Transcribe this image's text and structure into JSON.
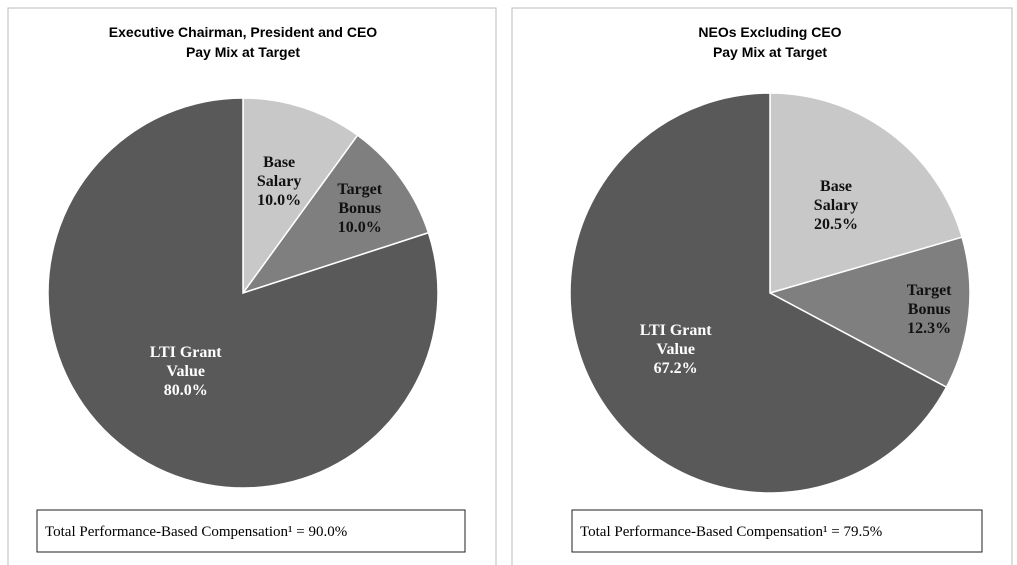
{
  "chart_data": [
    {
      "type": "pie",
      "title": "Executive Chairman, President and CEO",
      "subtitle": "Pay Mix at Target",
      "categories": [
        "Base Salary",
        "Target Bonus",
        "LTI Grant Value"
      ],
      "values": [
        10,
        10,
        80
      ],
      "value_labels": [
        "10.0%",
        "10.0%",
        "80.0%"
      ],
      "colors": [
        "#c8c8c8",
        "#7f7f7f",
        "#595959"
      ],
      "annotation": "Total Performance-Based Compensation¹ = 90.0%"
    },
    {
      "type": "pie",
      "title": "NEOs Excluding CEO",
      "subtitle": "Pay Mix at Target",
      "categories": [
        "Base Salary",
        "Target Bonus",
        "LTI Grant Value"
      ],
      "values": [
        20.5,
        12.3,
        67.2
      ],
      "value_labels": [
        "20.5%",
        "12.3%",
        "67.2%"
      ],
      "colors": [
        "#c8c8c8",
        "#7f7f7f",
        "#595959"
      ],
      "annotation": "Total Performance-Based Compensation¹ = 79.5%"
    }
  ]
}
